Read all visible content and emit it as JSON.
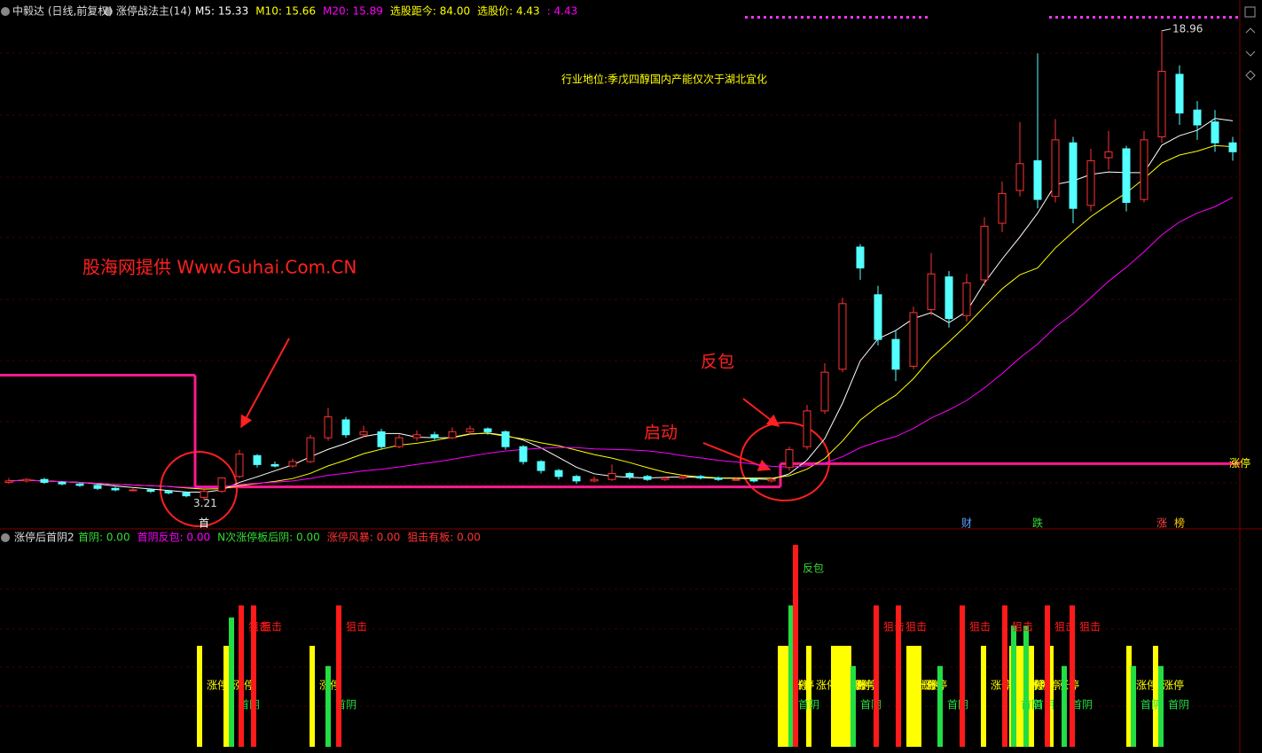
{
  "chart_data": [
    {
      "type": "candlestick",
      "title": "中毅达 (日线,前复权)",
      "indicator": "涨停战法主(14)",
      "legend_items": [
        {
          "label": "M5: 15.33",
          "color": "#ffffff"
        },
        {
          "label": "M10: 15.66",
          "color": "#ffff00"
        },
        {
          "label": "M20: 15.89",
          "color": "#ff00ff"
        },
        {
          "label": "选股距今: 84.00",
          "color": "#ffff00"
        },
        {
          "label": "选股价: 4.43",
          "color": "#ffff00"
        },
        {
          "label": ": 4.43",
          "color": "#ff00ff"
        }
      ],
      "up_color": "#ff3232",
      "down_color": "#54ffff",
      "ylim": [
        2.3,
        19.4
      ],
      "open": [
        3.8,
        3.85,
        3.9,
        3.8,
        3.75,
        3.7,
        3.6,
        3.55,
        3.55,
        3.5,
        3.45,
        3.3,
        3.5,
        4.0,
        4.7,
        4.4,
        4.35,
        4.5,
        5.3,
        5.9,
        5.4,
        5.5,
        5.0,
        5.3,
        5.4,
        5.3,
        5.5,
        5.6,
        5.5,
        5.0,
        4.5,
        4.2,
        4.0,
        3.85,
        3.9,
        4.1,
        4.0,
        3.9,
        3.95,
        4.0,
        3.95,
        3.9,
        3.9,
        3.85,
        4.3,
        5.0,
        6.2,
        7.6,
        11.7,
        10.1,
        8.6,
        7.7,
        9.6,
        10.7,
        9.4,
        10.6,
        12.5,
        13.6,
        14.6,
        13.4,
        15.2,
        13.1,
        14.7,
        15.0,
        13.3,
        15.4,
        17.5,
        16.3,
        15.9,
        15.2
      ],
      "high": [
        3.95,
        3.95,
        3.95,
        3.85,
        3.8,
        3.75,
        3.65,
        3.6,
        3.6,
        3.55,
        3.5,
        3.55,
        3.95,
        4.9,
        4.75,
        4.5,
        4.6,
        5.4,
        6.3,
        6.0,
        5.7,
        5.6,
        5.4,
        5.55,
        5.5,
        5.65,
        5.7,
        5.65,
        5.55,
        5.05,
        4.55,
        4.25,
        4.05,
        4.0,
        4.4,
        4.15,
        4.05,
        4.0,
        4.05,
        4.05,
        4.0,
        3.95,
        3.95,
        3.95,
        5.0,
        6.4,
        7.8,
        10.0,
        11.8,
        10.4,
        8.9,
        9.7,
        11.5,
        10.9,
        10.8,
        12.7,
        13.9,
        15.9,
        18.2,
        16.0,
        15.4,
        15.0,
        15.6,
        15.1,
        15.6,
        18.96,
        17.8,
        16.6,
        16.3,
        15.4
      ],
      "low": [
        3.75,
        3.8,
        3.75,
        3.7,
        3.65,
        3.55,
        3.5,
        3.5,
        3.45,
        3.4,
        3.3,
        3.21,
        3.45,
        3.95,
        4.3,
        4.3,
        4.3,
        4.45,
        5.2,
        5.3,
        5.3,
        4.9,
        4.95,
        5.2,
        5.2,
        5.25,
        5.4,
        5.4,
        4.9,
        4.4,
        4.1,
        3.9,
        3.75,
        3.8,
        3.85,
        3.9,
        3.85,
        3.85,
        3.9,
        3.9,
        3.85,
        3.85,
        3.8,
        3.8,
        4.2,
        4.9,
        6.1,
        7.5,
        10.6,
        8.4,
        7.2,
        7.6,
        9.4,
        9.0,
        9.2,
        10.4,
        12.2,
        13.4,
        13.0,
        13.2,
        12.5,
        12.9,
        14.3,
        12.9,
        13.2,
        15.2,
        15.8,
        15.3,
        14.9,
        14.6
      ],
      "close": [
        3.85,
        3.9,
        3.8,
        3.75,
        3.7,
        3.6,
        3.55,
        3.55,
        3.5,
        3.45,
        3.35,
        3.5,
        3.95,
        4.75,
        4.4,
        4.35,
        4.5,
        5.3,
        6.0,
        5.4,
        5.5,
        5.0,
        5.3,
        5.4,
        5.3,
        5.5,
        5.6,
        5.5,
        5.0,
        4.5,
        4.2,
        4.0,
        3.85,
        3.9,
        4.1,
        4.0,
        3.9,
        3.95,
        4.0,
        3.95,
        3.9,
        3.9,
        3.85,
        3.9,
        4.9,
        6.2,
        7.5,
        9.8,
        11.0,
        8.6,
        7.6,
        9.5,
        10.8,
        9.3,
        10.5,
        12.4,
        13.5,
        14.5,
        13.3,
        15.3,
        13.0,
        14.6,
        14.9,
        13.2,
        15.3,
        17.6,
        16.2,
        15.8,
        15.2,
        14.9
      ],
      "step_line": {
        "color": "#ff1a8c",
        "starts": [
          0,
          11,
          44
        ],
        "values": [
          7.4,
          3.65,
          4.43
        ],
        "label": "涨停"
      },
      "markers": [
        {
          "index": 11,
          "text": "首",
          "color": "#ffffff"
        },
        {
          "index": 54,
          "text": "财",
          "color": "#5aa0ff"
        },
        {
          "index": 58,
          "text": "跌",
          "color": "#33dd33"
        },
        {
          "index": 65,
          "text": "涨",
          "color": "#ff4444"
        },
        {
          "index": 66,
          "text": "榜",
          "color": "#ffcc00"
        }
      ],
      "annotations": {
        "industry": "行业地位:季戊四醇国内产能仅次于湖北宜化",
        "source": "股海网提供 Www.Guhai.Com.CN",
        "rebound": "反包",
        "start": "启动"
      }
    },
    {
      "type": "bar",
      "title": "涨停后首阴2",
      "legend_items": [
        {
          "label": "首阴: 0.00",
          "color": "#33dd33"
        },
        {
          "label": "首阴反包: 0.00",
          "color": "#ff00ff"
        },
        {
          "label": "N次涨停板后阴: 0.00",
          "color": "#33dd33"
        },
        {
          "label": "涨停风暴: 0.00",
          "color": "#ff3232"
        },
        {
          "label": "狙击有板: 0.00",
          "color": "#ff3232"
        }
      ],
      "ylim": [
        0,
        10
      ],
      "peak_label": "反包",
      "series": [
        {
          "name": "涨停",
          "color": "#ffff00",
          "x": [
            10.75,
            12.25,
            17.1,
            43.5,
            43.8,
            45.1,
            46.5,
            46.8,
            47.1,
            47.35,
            50.75,
            51.05,
            51.3,
            54.95,
            56.55,
            56.8,
            57.1,
            57.65,
            58.75,
            63.15,
            64.65
          ],
          "values": [
            5,
            5,
            5,
            5,
            5,
            5,
            5,
            5,
            5,
            5,
            5,
            5,
            5,
            5,
            5,
            5,
            5,
            5,
            5,
            5,
            5
          ]
        },
        {
          "name": "首阴",
          "color": "#22dd44",
          "x": [
            12.55,
            18,
            44.1,
            47.6,
            52.5,
            56.65,
            57.35,
            59.5,
            63.4,
            64.95
          ],
          "values": [
            6.4,
            4,
            7,
            4,
            4,
            6,
            6,
            4,
            4,
            4
          ]
        },
        {
          "name": "狙击",
          "color": "#ff1a1a",
          "x": [
            13.1,
            13.8,
            18.6,
            44.35,
            48.9,
            50.15,
            53.75,
            56.15,
            58.55,
            59.95
          ],
          "values": [
            7,
            7,
            7,
            10,
            7,
            7,
            7,
            7,
            7,
            7
          ]
        }
      ]
    }
  ]
}
